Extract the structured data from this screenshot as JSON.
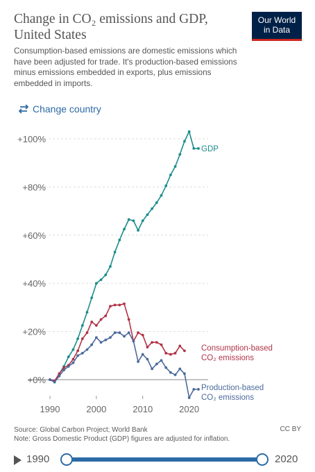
{
  "header": {
    "title": "Change in CO₂ emissions and GDP, United States",
    "subtitle": "Consumption-based emissions are domestic emissions which have been adjusted for trade. It's production-based emissions minus emissions embedded in exports, plus emissions embedded in imports.",
    "logo_line1": "Our World",
    "logo_line2": "in Data",
    "change_country_label": "Change country"
  },
  "colors": {
    "gdp": "#1c8c8c",
    "consumption": "#b13347",
    "production": "#4c6a9c",
    "accent": "#2c6aa5"
  },
  "chart_data": {
    "type": "line",
    "title": "Change in CO₂ emissions and GDP, United States",
    "xlim": [
      1990,
      2022
    ],
    "ylim": [
      -8,
      105
    ],
    "x_ticks": [
      1990,
      2000,
      2010,
      2020
    ],
    "y_ticks": [
      0,
      20,
      40,
      60,
      80,
      100
    ],
    "y_tick_labels": [
      "+0%",
      "+20%",
      "+40%",
      "+60%",
      "+80%",
      "+100%"
    ],
    "grid": "horizontal-dashed",
    "legend": "inline-right",
    "series": [
      {
        "name": "GDP",
        "label_lines": [
          "GDP"
        ],
        "color": "#1c8c8c",
        "x": [
          1990,
          1991,
          1992,
          1993,
          1994,
          1995,
          1996,
          1997,
          1998,
          1999,
          2000,
          2001,
          2002,
          2003,
          2004,
          2005,
          2006,
          2007,
          2008,
          2009,
          2010,
          2011,
          2012,
          2013,
          2014,
          2015,
          2016,
          2017,
          2018,
          2019,
          2020,
          2021,
          2022
        ],
        "values": [
          0,
          -1,
          2.5,
          5.5,
          9.5,
          12.5,
          17,
          22.5,
          28,
          34,
          40,
          41.5,
          43.5,
          47,
          53,
          58,
          62.5,
          66.5,
          66,
          62,
          66,
          68.5,
          71,
          73.5,
          76.5,
          80.5,
          85,
          88.5,
          93.5,
          99,
          103,
          96,
          96
        ]
      },
      {
        "name": "Consumption-based CO₂ emissions",
        "label_lines": [
          "Consumption-based",
          "CO₂ emissions"
        ],
        "color": "#b13347",
        "x": [
          1990,
          1991,
          1992,
          1993,
          1994,
          1995,
          1996,
          1997,
          1998,
          1999,
          2000,
          2001,
          2002,
          2003,
          2004,
          2005,
          2006,
          2007,
          2008,
          2009,
          2010,
          2011,
          2012,
          2013,
          2014,
          2015,
          2016,
          2017,
          2018,
          2019,
          2020,
          2021
        ],
        "values": [
          0,
          -0.5,
          2.5,
          5,
          6,
          8.5,
          12,
          17,
          19.5,
          24,
          22.5,
          25,
          26.5,
          30.5,
          31,
          31,
          31.5,
          25,
          16,
          19.5,
          18.5,
          13.5,
          15.5,
          15.5,
          14.5,
          11,
          10.5,
          11,
          14,
          12,
          null,
          null
        ]
      },
      {
        "name": "Production-based CO₂ emissions",
        "label_lines": [
          "Production-based",
          "CO₂ emissions"
        ],
        "color": "#4c6a9c",
        "x": [
          1990,
          1991,
          1992,
          1993,
          1994,
          1995,
          1996,
          1997,
          1998,
          1999,
          2000,
          2001,
          2002,
          2003,
          2004,
          2005,
          2006,
          2007,
          2008,
          2009,
          2010,
          2011,
          2012,
          2013,
          2014,
          2015,
          2016,
          2017,
          2018,
          2019,
          2020,
          2021,
          2022
        ],
        "values": [
          0,
          -1,
          1.5,
          4,
          5.5,
          7,
          10,
          11,
          12.5,
          14.5,
          17.5,
          15.5,
          16.5,
          17.5,
          19.5,
          19.5,
          18,
          19.5,
          16,
          7.5,
          10.5,
          8.5,
          4.5,
          6.5,
          8,
          5,
          3,
          2,
          4.5,
          2.5,
          -7.5,
          -4,
          -4
        ]
      }
    ]
  },
  "footer": {
    "source": "Source: Global Carbon Project; World Bank",
    "note": "Note: Gross Domestic Product (GDP) figures are adjusted for inflation.",
    "license": "CC BY"
  },
  "timeline": {
    "start_year": "1990",
    "end_year": "2020"
  }
}
